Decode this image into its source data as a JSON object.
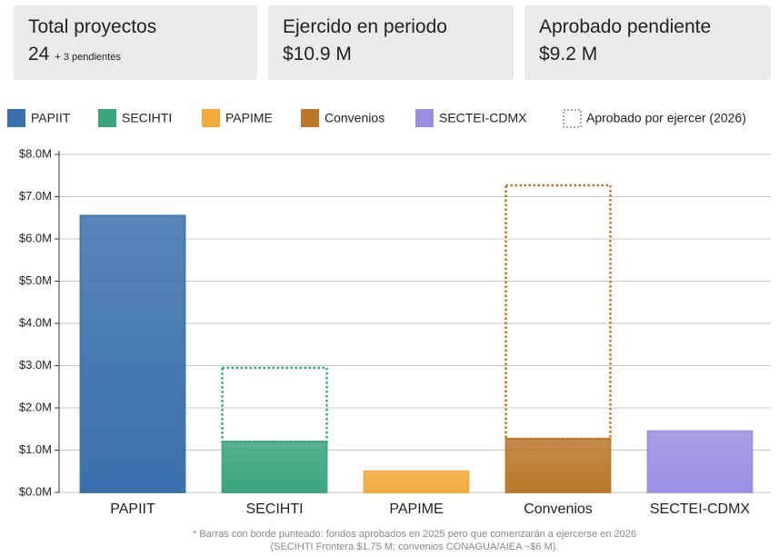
{
  "cards": [
    {
      "title": "Total proyectos",
      "value": "24",
      "note": "+ 3 pendientes"
    },
    {
      "title": "Ejercido en periodo",
      "value": "$10.9 M"
    },
    {
      "title": "Aprobado pendiente",
      "value": "$9.2 M"
    }
  ],
  "chart_data": {
    "type": "bar",
    "categories": [
      "PAPIIT",
      "SECIHTI",
      "PAPIME",
      "Convenios",
      "SECTEI-CDMX"
    ],
    "colors": [
      "#3a70ac",
      "#3aa57a",
      "#f2aa3c",
      "#b9782a",
      "#9a8fe2"
    ],
    "series": [
      {
        "values": [
          6.55,
          1.2,
          0.5,
          1.27,
          1.45
        ]
      },
      {
        "name": "Aprobado por ejercer (2026)",
        "style": "dashed",
        "values": [
          null,
          1.75,
          null,
          6,
          null
        ]
      }
    ],
    "ylim": [
      0,
      8
    ],
    "yticks": [
      {
        "value": 0,
        "label": "$0.0M"
      },
      {
        "value": 1,
        "label": "$1.0M"
      },
      {
        "value": 2,
        "label": "$2.0M"
      },
      {
        "value": 3,
        "label": "$3.0M"
      },
      {
        "value": 4,
        "label": "$4.0M"
      },
      {
        "value": 5,
        "label": "$5.0M"
      },
      {
        "value": 6,
        "label": "$6.0M"
      },
      {
        "value": 7,
        "label": "$7.0M"
      },
      {
        "value": 8,
        "label": "$8.0M"
      }
    ],
    "grid": true,
    "notes": [
      "* Barras con borde punteado: fondos aprobados en 2025 pero que comenzarán a ejercerse en 2026",
      "(SECIHTI Frontera $1.75 M; convenios CONAGUA/AIEA ~$6 M)."
    ]
  }
}
